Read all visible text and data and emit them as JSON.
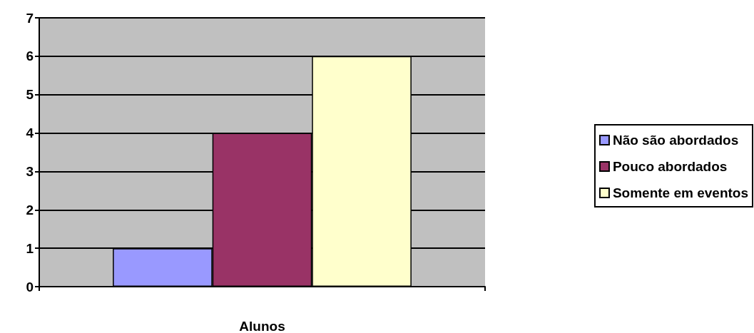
{
  "chart_data": {
    "type": "bar",
    "categories": [
      "Alunos"
    ],
    "series": [
      {
        "name": "Não são abordados",
        "color": "#9999ff",
        "values": [
          1
        ]
      },
      {
        "name": "Pouco abordados",
        "color": "#993366",
        "values": [
          4
        ]
      },
      {
        "name": "Somente em eventos",
        "color": "#ffffcc",
        "values": [
          6
        ]
      }
    ],
    "ylim": [
      0,
      7
    ],
    "yticks": [
      0,
      1,
      2,
      3,
      4,
      5,
      6,
      7
    ],
    "grid": "y",
    "legend": "right"
  }
}
